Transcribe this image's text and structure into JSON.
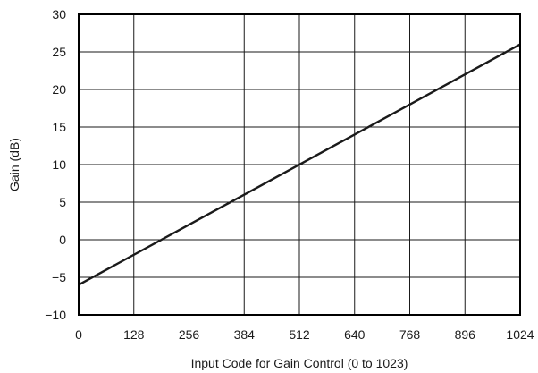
{
  "chart_data": {
    "type": "line",
    "title": "",
    "xlabel": "Input Code for Gain Control (0 to 1023)",
    "ylabel": "Gain (dB)",
    "xlim": [
      0,
      1024
    ],
    "ylim": [
      -10,
      30
    ],
    "x_ticks": [
      0,
      128,
      256,
      384,
      512,
      640,
      768,
      896,
      1024
    ],
    "x_tick_labels": [
      "0",
      "128",
      "256",
      "384",
      "512",
      "640",
      "768",
      "896",
      "1024"
    ],
    "y_ticks": [
      -10,
      -5,
      0,
      5,
      10,
      15,
      20,
      25,
      30
    ],
    "y_tick_labels": [
      "−10",
      "−5",
      "0",
      "5",
      "10",
      "15",
      "20",
      "25",
      "30"
    ],
    "grid": true,
    "series": [
      {
        "x": [
          0,
          1024
        ],
        "y": [
          -6,
          26
        ]
      }
    ],
    "colors": {
      "line": "#1a1a1a",
      "grid": "#1a1a1a",
      "frame": "#000000"
    }
  }
}
